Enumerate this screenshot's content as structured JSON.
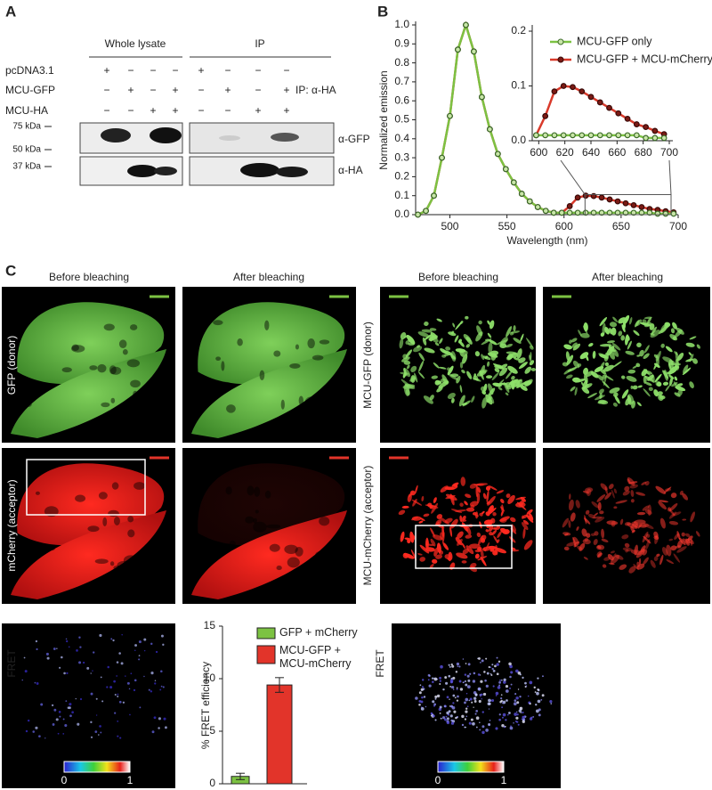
{
  "panel_a": {
    "label": "A",
    "header_lysate": "Whole lysate",
    "header_ip": "IP",
    "rows": [
      {
        "name": "pcDNA3.1",
        "signs": [
          "+",
          "−",
          "−",
          "−",
          "+",
          "−",
          "−",
          "−"
        ]
      },
      {
        "name": "MCU-GFP",
        "signs": [
          "−",
          "+",
          "−",
          "+",
          "−",
          "+",
          "−",
          "+"
        ]
      },
      {
        "name": "MCU-HA",
        "signs": [
          "−",
          "−",
          "+",
          "+",
          "−",
          "−",
          "+",
          "+"
        ]
      }
    ],
    "ip_label": "IP: α-HA",
    "markers": [
      "75 kDa",
      "50 kDa",
      "37 kDa"
    ],
    "antibodies": [
      "α-GFP",
      "α-HA"
    ]
  },
  "panel_b_label": "B",
  "chart_data": [
    {
      "type": "line",
      "y_label": "Normalized emission",
      "x_label": "Wavelength (nm)",
      "x": [
        472,
        479,
        486,
        493,
        500,
        507,
        514,
        521,
        528,
        535,
        542,
        549,
        556,
        563,
        570,
        577,
        584,
        591,
        598,
        605,
        612,
        619,
        626,
        633,
        640,
        647,
        654,
        661,
        668,
        675,
        682,
        689,
        696
      ],
      "series": [
        {
          "name": "MCU-GFP only",
          "color": "#7cc242",
          "values": [
            0.0,
            0.02,
            0.1,
            0.3,
            0.52,
            0.87,
            1.0,
            0.86,
            0.62,
            0.45,
            0.32,
            0.24,
            0.17,
            0.11,
            0.07,
            0.04,
            0.02,
            0.01,
            0.01,
            0.01,
            0.01,
            0.01,
            0.01,
            0.01,
            0.01,
            0.01,
            0.01,
            0.01,
            0.01,
            0.01,
            0.005,
            0.005,
            0.005
          ]
        },
        {
          "name": "MCU-GFP + MCU-mCherry",
          "color": "#d93a2b",
          "values": [
            0.0,
            0.02,
            0.1,
            0.3,
            0.52,
            0.87,
            1.0,
            0.86,
            0.62,
            0.45,
            0.32,
            0.24,
            0.17,
            0.11,
            0.07,
            0.04,
            0.02,
            0.01,
            0.01,
            0.045,
            0.09,
            0.1,
            0.098,
            0.09,
            0.08,
            0.07,
            0.06,
            0.05,
            0.04,
            0.03,
            0.025,
            0.018,
            0.012
          ]
        }
      ],
      "xlim": [
        470,
        700
      ],
      "xticks": [
        500,
        550,
        600,
        650,
        700
      ],
      "ylim": [
        0,
        1
      ],
      "yticks": [
        {
          "value": 0,
          "label": "0.0"
        },
        0.1,
        0.2,
        0.3,
        0.4,
        0.5,
        0.6,
        0.7,
        0.8,
        0.9,
        {
          "value": 1,
          "label": "1.0"
        }
      ]
    },
    {
      "type": "inset",
      "xlim": [
        595,
        700
      ],
      "xticks": [
        600,
        620,
        640,
        660,
        680,
        700
      ],
      "ylim": [
        0,
        0.2
      ],
      "yticks": [
        {
          "value": 0,
          "label": "0.0"
        },
        0.1,
        0.2
      ]
    },
    {
      "type": "bar",
      "y_label": "% FRET efficiency",
      "categories": [
        null
      ],
      "series": [
        {
          "name": "GFP + mCherry",
          "color": "#7cc242",
          "values": [
            0.7
          ],
          "errors": [
            0.3
          ]
        },
        {
          "name": "MCU-GFP + MCU-mCherry",
          "color": "#e2342a",
          "values": [
            9.4
          ],
          "errors": [
            0.7
          ]
        }
      ],
      "ylim": [
        0,
        15
      ],
      "yticks": [
        0,
        5,
        10,
        15
      ]
    }
  ],
  "panel_c": {
    "label": "C",
    "headers": [
      "Before bleaching",
      "After bleaching",
      "Before bleaching",
      "After bleaching"
    ],
    "row_labels": [
      "GFP (donor)",
      "mCherry (acceptor)",
      "MCU-GFP (donor)",
      "MCU-mCherry (acceptor)"
    ],
    "fret_labels": [
      "FRET",
      "FRET"
    ],
    "colorbar_left": [
      "0",
      "1"
    ],
    "colorbar_right": [
      "0",
      "1"
    ]
  }
}
